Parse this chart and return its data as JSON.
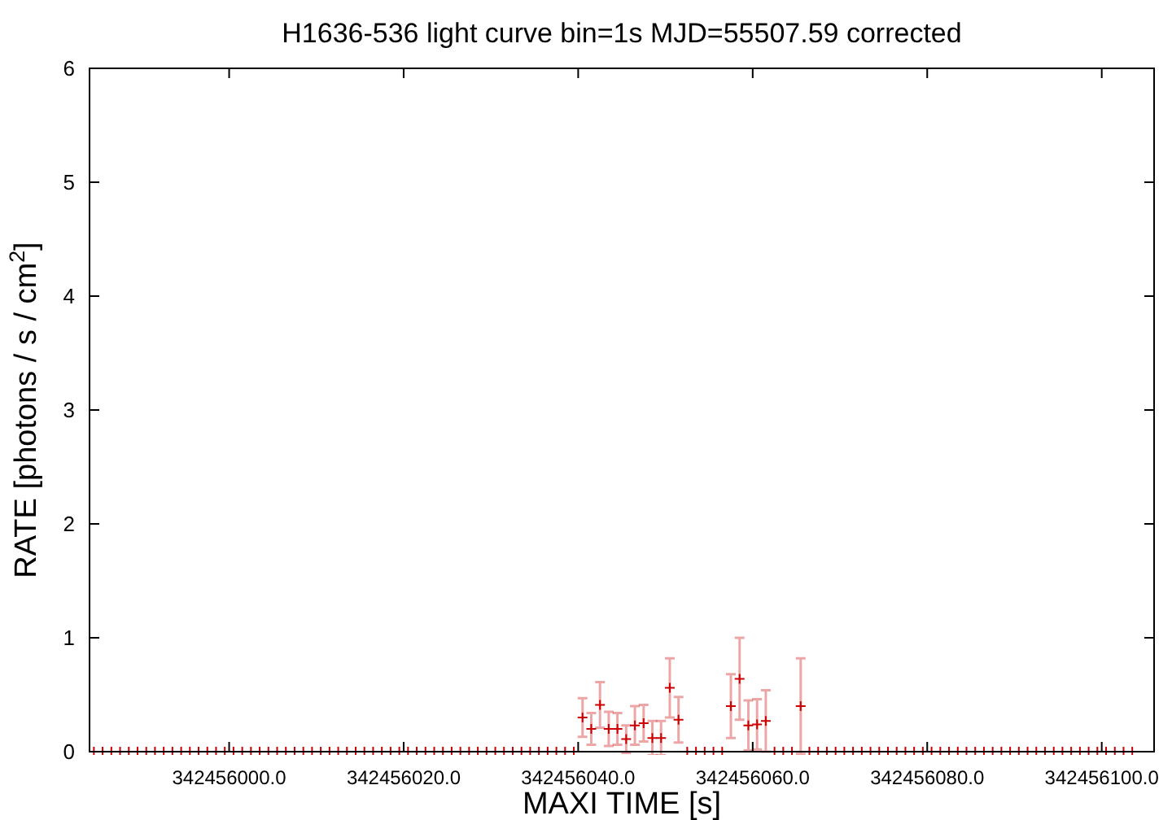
{
  "chart_data": {
    "type": "scatter",
    "title": "H1636-536 light curve bin=1s MJD=55507.59 corrected",
    "xlabel": "MAXI TIME [s]",
    "ylabel": "RATE [photons / s / cm$^{2}$]",
    "xlim": [
      342455984,
      342456106
    ],
    "ylim": [
      0,
      6
    ],
    "xticks": [
      {
        "value": 342456000,
        "label": "342456000.0"
      },
      {
        "value": 342456020,
        "label": "342456020.0"
      },
      {
        "value": 342456040,
        "label": "342456040.0"
      },
      {
        "value": 342456060,
        "label": "342456060.0"
      },
      {
        "value": 342456080,
        "label": "342456080.0"
      },
      {
        "value": 342456100,
        "label": "342456100.0"
      }
    ],
    "yticks": [
      0,
      1,
      2,
      3,
      4,
      5,
      6
    ],
    "grid": false,
    "marker": "cross",
    "series": [
      {
        "color": "#cc0000",
        "x": [
          342455984.5,
          342455985.5,
          342455986.5,
          342455987.5,
          342455988.5,
          342455989.5,
          342455990.5,
          342455991.5,
          342455992.5,
          342455993.5,
          342455994.5,
          342455995.5,
          342455996.5,
          342455997.5,
          342455998.5,
          342455999.5,
          342456000.5,
          342456001.5,
          342456002.5,
          342456003.5,
          342456004.5,
          342456005.5,
          342456006.5,
          342456007.5,
          342456008.5,
          342456009.5,
          342456010.5,
          342456011.5,
          342456012.5,
          342456013.5,
          342456014.5,
          342456015.5,
          342456016.5,
          342456017.5,
          342456018.5,
          342456019.5,
          342456020.5,
          342456021.5,
          342456022.5,
          342456023.5,
          342456024.5,
          342456025.5,
          342456026.5,
          342456027.5,
          342456028.5,
          342456029.5,
          342456030.5,
          342456031.5,
          342456032.5,
          342456033.5,
          342456034.5,
          342456035.5,
          342456036.5,
          342456037.5,
          342456038.5,
          342456039.5,
          342456040.5,
          342456041.5,
          342456042.5,
          342456043.5,
          342456044.5,
          342456045.5,
          342456046.5,
          342456047.5,
          342456048.5,
          342456049.5,
          342456050.5,
          342456051.5,
          342456052.5,
          342456053.5,
          342456054.5,
          342456055.5,
          342456056.5,
          342456057.5,
          342456058.5,
          342456059.5,
          342456060.5,
          342456061.5,
          342456062.5,
          342456063.5,
          342456064.5,
          342456065.5,
          342456066.5,
          342456067.5,
          342456068.5,
          342456069.5,
          342456070.5,
          342456071.5,
          342456072.5,
          342456073.5,
          342456074.5,
          342456075.5,
          342456076.5,
          342456077.5,
          342456078.5,
          342456079.5,
          342456080.5,
          342456081.5,
          342456082.5,
          342456083.5,
          342456084.5,
          342456085.5,
          342456086.5,
          342456087.5,
          342456088.5,
          342456089.5,
          342456090.5,
          342456091.5,
          342456092.5,
          342456093.5,
          342456094.5,
          342456095.5,
          342456096.5,
          342456097.5,
          342456098.5,
          342456099.5,
          342456100.5,
          342456101.5,
          342456102.5,
          342456103.5
        ],
        "values": [
          0,
          0,
          0,
          0,
          0,
          0,
          0,
          0,
          0,
          0,
          0,
          0,
          0,
          0,
          0,
          0,
          0,
          0,
          0,
          0,
          0,
          0,
          0,
          0,
          0,
          0,
          0,
          0,
          0,
          0,
          0,
          0,
          0,
          0,
          0,
          0,
          0,
          0,
          0,
          0,
          0,
          0,
          0,
          0,
          0,
          0,
          0,
          0,
          0,
          0,
          0,
          0,
          0,
          0,
          0,
          0,
          0.3,
          0.2,
          0.41,
          0.2,
          0.2,
          0.11,
          0.23,
          0.25,
          0.12,
          0.12,
          0.56,
          0.28,
          0,
          0,
          0,
          0,
          0,
          0.4,
          0.64,
          0.23,
          0.24,
          0.27,
          0,
          0,
          0,
          0.4,
          0,
          0,
          0,
          0,
          0,
          0,
          0,
          0,
          0,
          0,
          0,
          0,
          0,
          0,
          0,
          0,
          0,
          0,
          0,
          0,
          0,
          0,
          0,
          0,
          0,
          0,
          0,
          0,
          0,
          0,
          0,
          0,
          0,
          0,
          0,
          0,
          0,
          0
        ],
        "errors": [
          null,
          null,
          null,
          null,
          null,
          null,
          null,
          null,
          null,
          null,
          null,
          null,
          null,
          null,
          null,
          null,
          null,
          null,
          null,
          null,
          null,
          null,
          null,
          null,
          null,
          null,
          null,
          null,
          null,
          null,
          null,
          null,
          null,
          null,
          null,
          null,
          null,
          null,
          null,
          null,
          null,
          null,
          null,
          null,
          null,
          null,
          null,
          null,
          null,
          null,
          null,
          null,
          null,
          null,
          null,
          null,
          0.17,
          0.14,
          0.2,
          0.15,
          0.14,
          0.12,
          0.17,
          0.16,
          0.15,
          0.15,
          0.26,
          0.2,
          null,
          null,
          null,
          null,
          null,
          0.28,
          0.36,
          0.22,
          0.22,
          0.27,
          null,
          null,
          null,
          0.42,
          null,
          null,
          null,
          null,
          null,
          null,
          null,
          null,
          null,
          null,
          null,
          null,
          null,
          null,
          null,
          null,
          null,
          null,
          null,
          null,
          null,
          null,
          null,
          null,
          null,
          null,
          null,
          null,
          null,
          null,
          null,
          null,
          null,
          null,
          null,
          null,
          null,
          null
        ]
      }
    ]
  }
}
